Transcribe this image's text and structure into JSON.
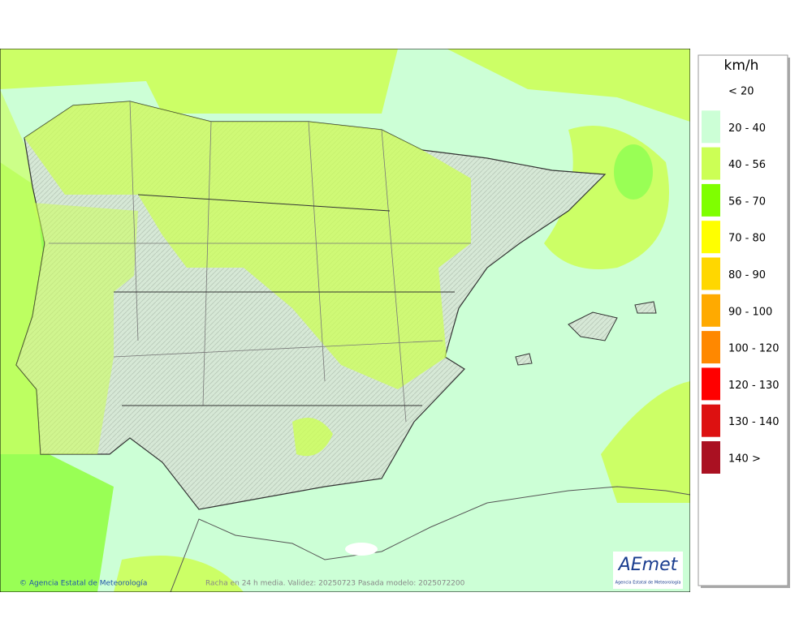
{
  "legend": {
    "title": "km/h",
    "items": [
      {
        "label": "< 20",
        "color": "#ffffff"
      },
      {
        "label": "20 - 40",
        "color": "#ccffd6"
      },
      {
        "label": "40 - 56",
        "color": "#ccff55"
      },
      {
        "label": "56 - 70",
        "color": "#7fff00"
      },
      {
        "label": "70 - 80",
        "color": "#ffff00"
      },
      {
        "label": "80 - 90",
        "color": "#ffd700"
      },
      {
        "label": "90 - 100",
        "color": "#ffaa00"
      },
      {
        "label": "100 - 120",
        "color": "#ff8800"
      },
      {
        "label": "120 - 130",
        "color": "#ff0000"
      },
      {
        "label": "130 - 140",
        "color": "#dd1111"
      },
      {
        "label": "140 >",
        "color": "#aa1122"
      }
    ]
  },
  "footer": {
    "credit": "© Agencia Estatal de Meteorología",
    "caption": "Racha en 24 h media. Validez: 20250723 Pasada modelo: 2025072200"
  },
  "logo": {
    "name": "AEmet",
    "subtitle": "Agencia Estatal de Meteorología"
  }
}
